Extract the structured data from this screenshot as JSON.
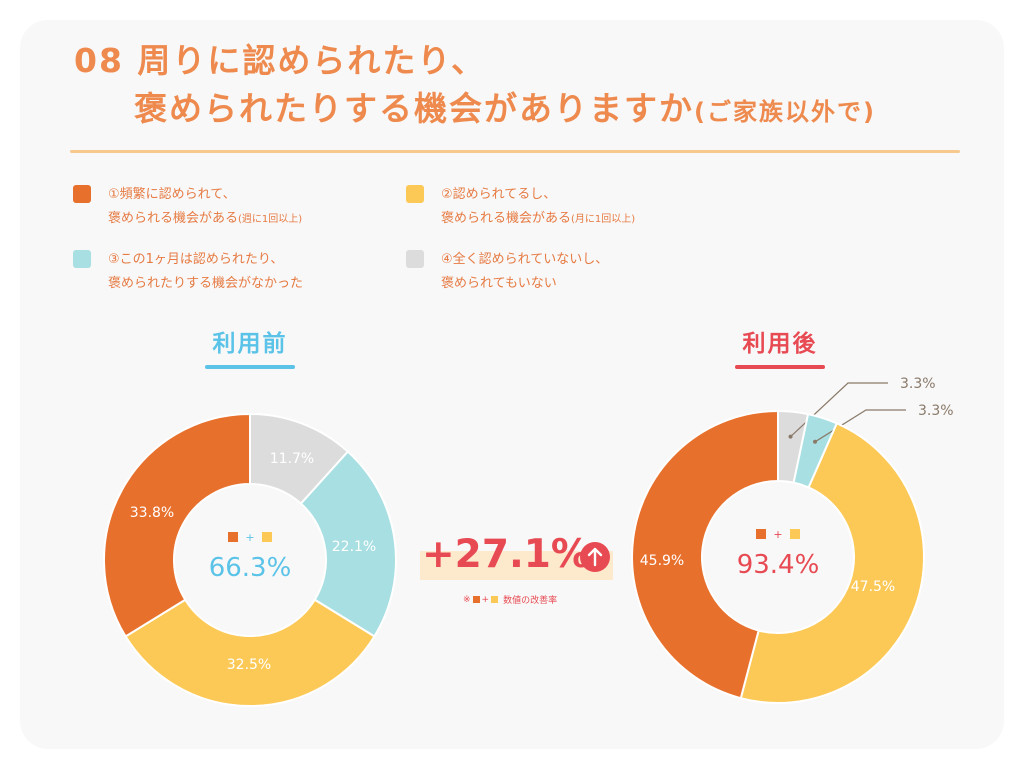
{
  "title": {
    "line1": "08 周りに認められたり、",
    "line2": "褒められたりする機会がありますか",
    "suffix": "(ご家族以外で)"
  },
  "legend": [
    {
      "line1": "①頻繁に認められて、",
      "line2": "褒められる機会がある",
      "note": "(週に1回以上)",
      "color": "#e8702d"
    },
    {
      "line1": "②認められてるし、",
      "line2": "褒められる機会がある",
      "note": "(月に1回以上)",
      "color": "#fcc957"
    },
    {
      "line1": "③この1ヶ月は認められたり、",
      "line2": "褒められたりする機会がなかった",
      "note": "",
      "color": "#a8dfe2"
    },
    {
      "line1": "④全く認められていないし、",
      "line2": "褒められてもいない",
      "note": "",
      "color": "#dcdcdc"
    }
  ],
  "improvement": {
    "value": "+27.1%",
    "note_prefix": "※",
    "note_plus": "+",
    "note_text": "数値の改善率",
    "arrow_icon": "up-arrow-icon"
  },
  "center_plus": "+",
  "chart_data": [
    {
      "type": "pie",
      "title": "利用前",
      "title_color": "#5bc3e8",
      "center_value": "66.3%",
      "center_color": "#5bc3e8",
      "categories": [
        "①",
        "②",
        "③",
        "④"
      ],
      "values": [
        33.8,
        32.5,
        22.1,
        11.7
      ],
      "labels": [
        "33.8%",
        "32.5%",
        "22.1%",
        "11.7%"
      ],
      "colors": [
        "#e8702d",
        "#fcc957",
        "#a8dfe2",
        "#dcdcdc"
      ]
    },
    {
      "type": "pie",
      "title": "利用後",
      "title_color": "#e74a52",
      "center_value": "93.4%",
      "center_color": "#e74a52",
      "categories": [
        "①",
        "②",
        "③",
        "④"
      ],
      "values": [
        45.9,
        47.5,
        3.3,
        3.3
      ],
      "labels": [
        "45.9%",
        "47.5%",
        "3.3%",
        "3.3%"
      ],
      "colors": [
        "#e8702d",
        "#fcc957",
        "#a8dfe2",
        "#dcdcdc"
      ]
    }
  ]
}
